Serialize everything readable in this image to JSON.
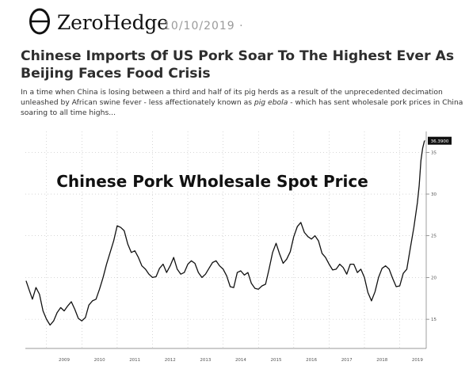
{
  "brand": {
    "logo_text": "ZeroHedge",
    "logo_icon": "theta-logo-icon"
  },
  "article": {
    "date": "10/10/2019",
    "date_suffix": "·",
    "headline": "Chinese Imports Of US Pork Soar To The Highest Ever As Beijing Faces Food Crisis",
    "intro_part1": "In a time when China is losing between a third and half of its pig herds as a result of the unprecedented decimation unleashed by African swine fever - less affectionately known as ",
    "intro_em": "pig ebola",
    "intro_part2": " - which has sent wholesale pork prices in China soaring to all time highs..."
  },
  "colors": {
    "line": "#111111",
    "badge_bg": "#111111",
    "grid": "#bdbdbd",
    "date": "#9a9a9a"
  },
  "chart_data": {
    "type": "line",
    "title": "Chinese Pork Wholesale Spot Price",
    "xlabel": "",
    "ylabel": "",
    "x_ticks": [
      "2009",
      "2010",
      "2011",
      "2012",
      "2013",
      "2014",
      "2015",
      "2016",
      "2017",
      "2018",
      "2019"
    ],
    "y_ticks": [
      15,
      20,
      25,
      30,
      35
    ],
    "ylim": [
      11.5,
      37.5
    ],
    "xlim": [
      2008.4,
      2019.75
    ],
    "grid": true,
    "last_value_label": "36.3900",
    "series": [
      {
        "x": [
          2008.42,
          2008.5,
          2008.6,
          2008.7,
          2008.8,
          2008.9,
          2009.0,
          2009.1,
          2009.2,
          2009.3,
          2009.4,
          2009.5,
          2009.6,
          2009.7,
          2009.8,
          2009.9,
          2010.0,
          2010.1,
          2010.2,
          2010.3,
          2010.4,
          2010.5,
          2010.6,
          2010.7,
          2010.8,
          2010.9,
          2011.0,
          2011.1,
          2011.2,
          2011.3,
          2011.4,
          2011.5,
          2011.6,
          2011.7,
          2011.8,
          2011.9,
          2012.0,
          2012.1,
          2012.2,
          2012.3,
          2012.4,
          2012.5,
          2012.6,
          2012.7,
          2012.8,
          2012.9,
          2013.0,
          2013.1,
          2013.2,
          2013.3,
          2013.4,
          2013.5,
          2013.6,
          2013.7,
          2013.8,
          2013.9,
          2014.0,
          2014.1,
          2014.2,
          2014.3,
          2014.4,
          2014.5,
          2014.6,
          2014.7,
          2014.8,
          2014.9,
          2015.0,
          2015.1,
          2015.2,
          2015.3,
          2015.4,
          2015.5,
          2015.6,
          2015.7,
          2015.8,
          2015.9,
          2016.0,
          2016.1,
          2016.2,
          2016.3,
          2016.4,
          2016.5,
          2016.6,
          2016.7,
          2016.8,
          2016.9,
          2017.0,
          2017.1,
          2017.2,
          2017.3,
          2017.4,
          2017.5,
          2017.6,
          2017.7,
          2017.8,
          2017.9,
          2018.0,
          2018.1,
          2018.2,
          2018.3,
          2018.4,
          2018.5,
          2018.6,
          2018.7,
          2018.8,
          2018.9,
          2019.0,
          2019.1,
          2019.2,
          2019.3,
          2019.4,
          2019.5,
          2019.55,
          2019.6,
          2019.65,
          2019.7
        ],
        "values": [
          19.6,
          18.6,
          17.4,
          18.8,
          18.0,
          16.0,
          15.0,
          14.3,
          14.8,
          15.8,
          16.4,
          16.0,
          16.6,
          17.1,
          16.2,
          15.1,
          14.8,
          15.2,
          16.7,
          17.2,
          17.4,
          18.6,
          20.0,
          21.6,
          23.0,
          24.4,
          26.2,
          26.0,
          25.6,
          24.0,
          23.0,
          23.2,
          22.4,
          21.4,
          21.0,
          20.4,
          20.0,
          20.1,
          21.1,
          21.6,
          20.6,
          21.4,
          22.4,
          21.0,
          20.4,
          20.6,
          21.6,
          22.0,
          21.7,
          20.6,
          20.0,
          20.4,
          21.1,
          21.8,
          22.0,
          21.4,
          21.0,
          20.2,
          18.9,
          18.8,
          20.6,
          20.8,
          20.3,
          20.6,
          19.3,
          18.7,
          18.6,
          19.0,
          19.2,
          21.0,
          23.0,
          24.1,
          22.8,
          21.7,
          22.2,
          23.1,
          24.9,
          26.1,
          26.6,
          25.4,
          24.9,
          24.6,
          25.0,
          24.4,
          22.9,
          22.4,
          21.6,
          20.9,
          21.0,
          21.6,
          21.2,
          20.4,
          21.6,
          21.6,
          20.6,
          21.0,
          20.0,
          18.2,
          17.2,
          18.3,
          20.0,
          21.1,
          21.4,
          21.0,
          19.9,
          18.9,
          19.0,
          20.5,
          21.0,
          23.5,
          26.0,
          29.0,
          31.0,
          34.0,
          35.5,
          36.39
        ]
      }
    ]
  }
}
